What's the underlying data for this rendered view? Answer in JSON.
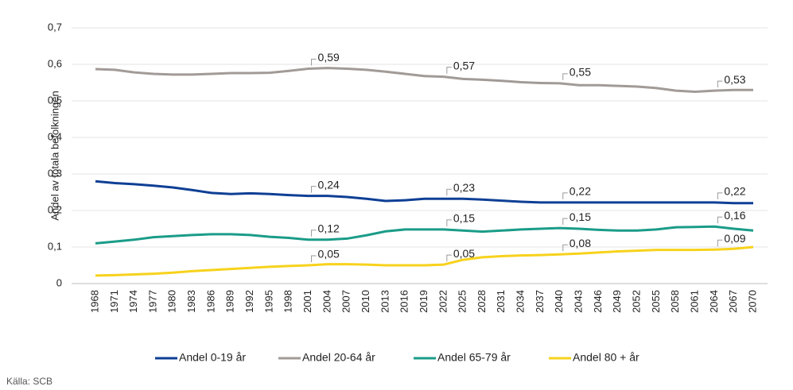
{
  "chart_data": {
    "type": "line",
    "y_label": "Andel av totala befolkningen",
    "source": "Källa: SCB",
    "categories": [
      "1968",
      "1971",
      "1974",
      "1977",
      "1980",
      "1983",
      "1986",
      "1989",
      "1992",
      "1995",
      "1998",
      "2001",
      "2004",
      "2007",
      "2010",
      "2013",
      "2016",
      "2019",
      "2022",
      "2025",
      "2028",
      "2031",
      "2034",
      "2037",
      "2040",
      "2043",
      "2046",
      "2049",
      "2052",
      "2055",
      "2058",
      "2061",
      "2064",
      "2067",
      "2070"
    ],
    "series": [
      {
        "name": "Andel 0-19 år",
        "color": "#0e3f95",
        "values": [
          0.28,
          0.275,
          0.272,
          0.268,
          0.263,
          0.256,
          0.248,
          0.245,
          0.247,
          0.245,
          0.242,
          0.24,
          0.24,
          0.237,
          0.232,
          0.226,
          0.228,
          0.232,
          0.232,
          0.232,
          0.23,
          0.227,
          0.224,
          0.222,
          0.222,
          0.222,
          0.222,
          0.222,
          0.222,
          0.222,
          0.222,
          0.222,
          0.222,
          0.22,
          0.22
        ],
        "value_labels": [
          null,
          null,
          null,
          null,
          null,
          null,
          null,
          null,
          null,
          null,
          null,
          "0,24",
          null,
          null,
          null,
          null,
          null,
          null,
          "0,23",
          null,
          null,
          null,
          null,
          null,
          "0,22",
          null,
          null,
          null,
          null,
          null,
          null,
          null,
          "0,22",
          null,
          null
        ]
      },
      {
        "name": "Andel 20-64 år",
        "color": "#a19b97",
        "values": [
          0.587,
          0.585,
          0.578,
          0.574,
          0.572,
          0.572,
          0.574,
          0.576,
          0.576,
          0.577,
          0.582,
          0.588,
          0.59,
          0.588,
          0.585,
          0.58,
          0.574,
          0.568,
          0.566,
          0.56,
          0.558,
          0.555,
          0.551,
          0.549,
          0.548,
          0.543,
          0.543,
          0.541,
          0.539,
          0.535,
          0.528,
          0.525,
          0.528,
          0.53,
          0.53
        ],
        "value_labels": [
          null,
          null,
          null,
          null,
          null,
          null,
          null,
          null,
          null,
          null,
          null,
          "0,59",
          null,
          null,
          null,
          null,
          null,
          null,
          "0,57",
          null,
          null,
          null,
          null,
          null,
          "0,55",
          null,
          null,
          null,
          null,
          null,
          null,
          null,
          "0,53",
          null,
          null
        ]
      },
      {
        "name": "Andel 65-79 år",
        "color": "#1a9c88",
        "values": [
          0.11,
          0.115,
          0.12,
          0.127,
          0.13,
          0.133,
          0.135,
          0.135,
          0.133,
          0.128,
          0.125,
          0.12,
          0.12,
          0.123,
          0.132,
          0.143,
          0.148,
          0.148,
          0.148,
          0.145,
          0.142,
          0.145,
          0.148,
          0.15,
          0.152,
          0.15,
          0.147,
          0.145,
          0.145,
          0.148,
          0.154,
          0.155,
          0.156,
          0.15,
          0.145
        ],
        "value_labels": [
          null,
          null,
          null,
          null,
          null,
          null,
          null,
          null,
          null,
          null,
          null,
          "0,12",
          null,
          null,
          null,
          null,
          null,
          null,
          "0,15",
          null,
          null,
          null,
          null,
          null,
          "0,15",
          null,
          null,
          null,
          null,
          null,
          null,
          null,
          "0,16",
          null,
          null
        ]
      },
      {
        "name": "Andel 80 + år",
        "color": "#f7d21c",
        "values": [
          0.022,
          0.023,
          0.025,
          0.027,
          0.03,
          0.034,
          0.037,
          0.04,
          0.043,
          0.046,
          0.048,
          0.05,
          0.053,
          0.053,
          0.052,
          0.05,
          0.05,
          0.05,
          0.052,
          0.065,
          0.072,
          0.075,
          0.077,
          0.078,
          0.08,
          0.082,
          0.085,
          0.088,
          0.09,
          0.092,
          0.092,
          0.092,
          0.093,
          0.095,
          0.1
        ],
        "value_labels": [
          null,
          null,
          null,
          null,
          null,
          null,
          null,
          null,
          null,
          null,
          null,
          "0,05",
          null,
          null,
          null,
          null,
          null,
          null,
          "0,05",
          null,
          null,
          null,
          null,
          null,
          "0,08",
          null,
          null,
          null,
          null,
          null,
          null,
          null,
          "0,09",
          null,
          null
        ]
      }
    ],
    "ylim": [
      0,
      0.7
    ],
    "yticks": [
      0,
      {
        "value": 0.1,
        "label": "0,1"
      },
      {
        "value": 0.2,
        "label": "0,2"
      },
      {
        "value": 0.3,
        "label": "0,3"
      },
      {
        "value": 0.4,
        "label": "0,4"
      },
      {
        "value": 0.5,
        "label": "0,5"
      },
      {
        "value": 0.6,
        "label": "0,6"
      },
      {
        "value": 0.7,
        "label": "0,7"
      }
    ],
    "grid": true,
    "legend": "bottom"
  }
}
